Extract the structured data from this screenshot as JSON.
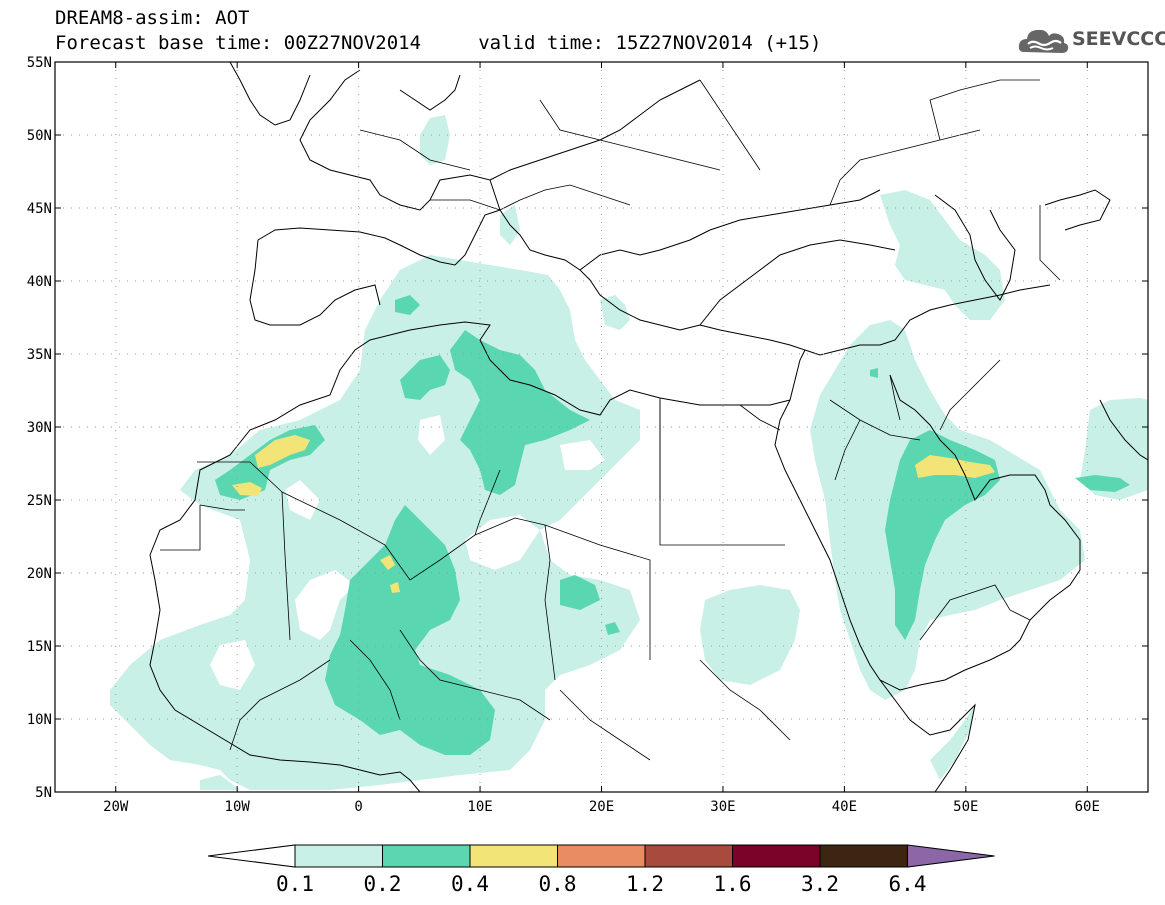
{
  "title": {
    "line1": "DREAM8-assim: AOT",
    "line2": "Forecast base time: 00Z27NOV2014     valid time: 15Z27NOV2014 (+15)"
  },
  "logo": {
    "text": "SEEVCCC",
    "icon": "cloud-icon"
  },
  "map": {
    "lon_range": [
      -25,
      65
    ],
    "lat_range": [
      5,
      55
    ],
    "lon_ticks": [
      {
        "value": -20,
        "label": "20W"
      },
      {
        "value": -10,
        "label": "10W"
      },
      {
        "value": 0,
        "label": "0"
      },
      {
        "value": 10,
        "label": "10E"
      },
      {
        "value": 20,
        "label": "20E"
      },
      {
        "value": 30,
        "label": "30E"
      },
      {
        "value": 40,
        "label": "40E"
      },
      {
        "value": 50,
        "label": "50E"
      },
      {
        "value": 60,
        "label": "60E"
      }
    ],
    "lat_ticks": [
      {
        "value": 55,
        "label": "55N"
      },
      {
        "value": 50,
        "label": "50N"
      },
      {
        "value": 45,
        "label": "45N"
      },
      {
        "value": 40,
        "label": "40N"
      },
      {
        "value": 35,
        "label": "35N"
      },
      {
        "value": 30,
        "label": "30N"
      },
      {
        "value": 25,
        "label": "25N"
      },
      {
        "value": 20,
        "label": "20N"
      },
      {
        "value": 15,
        "label": "15N"
      },
      {
        "value": 10,
        "label": "10N"
      },
      {
        "value": 5,
        "label": "5N"
      }
    ]
  },
  "colorbar": {
    "colors": [
      "#ffffff",
      "#c8f0e6",
      "#5ad7b1",
      "#f2e476",
      "#e98c63",
      "#a84b3c",
      "#7b0229",
      "#3d2512",
      "#8c67a8"
    ],
    "labels": [
      "0.1",
      "0.2",
      "0.4",
      "0.8",
      "1.2",
      "1.6",
      "3.2",
      "6.4"
    ]
  }
}
